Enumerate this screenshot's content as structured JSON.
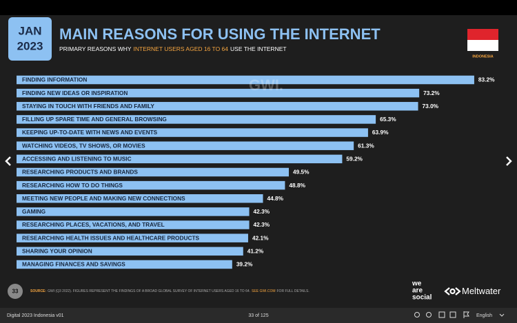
{
  "viewer": {
    "document_title": "Digital 2023 Indonesia v01",
    "page_indicator": "33 of 125",
    "language": "English"
  },
  "slide": {
    "date_month": "JAN",
    "date_year": "2023",
    "subtitle_parts": [
      "PRIMARY REASONS WHY",
      "INTERNET USERS AGED 16 TO 64",
      "USE THE INTERNET"
    ],
    "country": "INDONESIA",
    "watermark": "GWI.",
    "page_number": "33",
    "source_parts": [
      "SOURCE:",
      "GWI (Q3 2022). FIGURES REPRESENT THE FINDINGS OF A BROAD GLOBAL SURVEY OF INTERNET USERS AGED 16 TO 64.",
      "SEE GWI.COM",
      "FOR FULL DETAILS."
    ],
    "brand_we_are_social": [
      "we",
      "are",
      "social"
    ],
    "brand_meltwater": "Meltwater"
  },
  "chart_data": {
    "type": "bar",
    "orientation": "horizontal",
    "title": "MAIN REASONS FOR USING THE INTERNET",
    "categories": [
      "FINDING INFORMATION",
      "FINDING NEW IDEAS OR INSPIRATION",
      "STAYING IN TOUCH WITH FRIENDS AND FAMILY",
      "FILLING UP SPARE TIME AND GENERAL BROWSING",
      "KEEPING UP-TO-DATE WITH NEWS AND EVENTS",
      "WATCHING VIDEOS, TV SHOWS, OR MOVIES",
      "ACCESSING AND LISTENING TO MUSIC",
      "RESEARCHING PRODUCTS AND BRANDS",
      "RESEARCHING HOW TO DO THINGS",
      "MEETING NEW PEOPLE AND MAKING NEW CONNECTIONS",
      "GAMING",
      "RESEARCHING PLACES, VACATIONS, AND TRAVEL",
      "RESEARCHING HEALTH ISSUES AND HEALTHCARE PRODUCTS",
      "SHARING YOUR OPINION",
      "MANAGING FINANCES AND SAVINGS"
    ],
    "values": [
      83.2,
      73.2,
      73.0,
      65.3,
      63.9,
      61.3,
      59.2,
      49.5,
      48.8,
      44.8,
      42.3,
      42.3,
      42.1,
      41.2,
      39.2
    ],
    "value_labels": [
      "83.2%",
      "73.2%",
      "73.0%",
      "65.3%",
      "63.9%",
      "61.3%",
      "59.2%",
      "49.5%",
      "48.8%",
      "44.8%",
      "42.3%",
      "42.3%",
      "42.1%",
      "41.2%",
      "39.2%"
    ],
    "color": "#8dc1f2"
  }
}
